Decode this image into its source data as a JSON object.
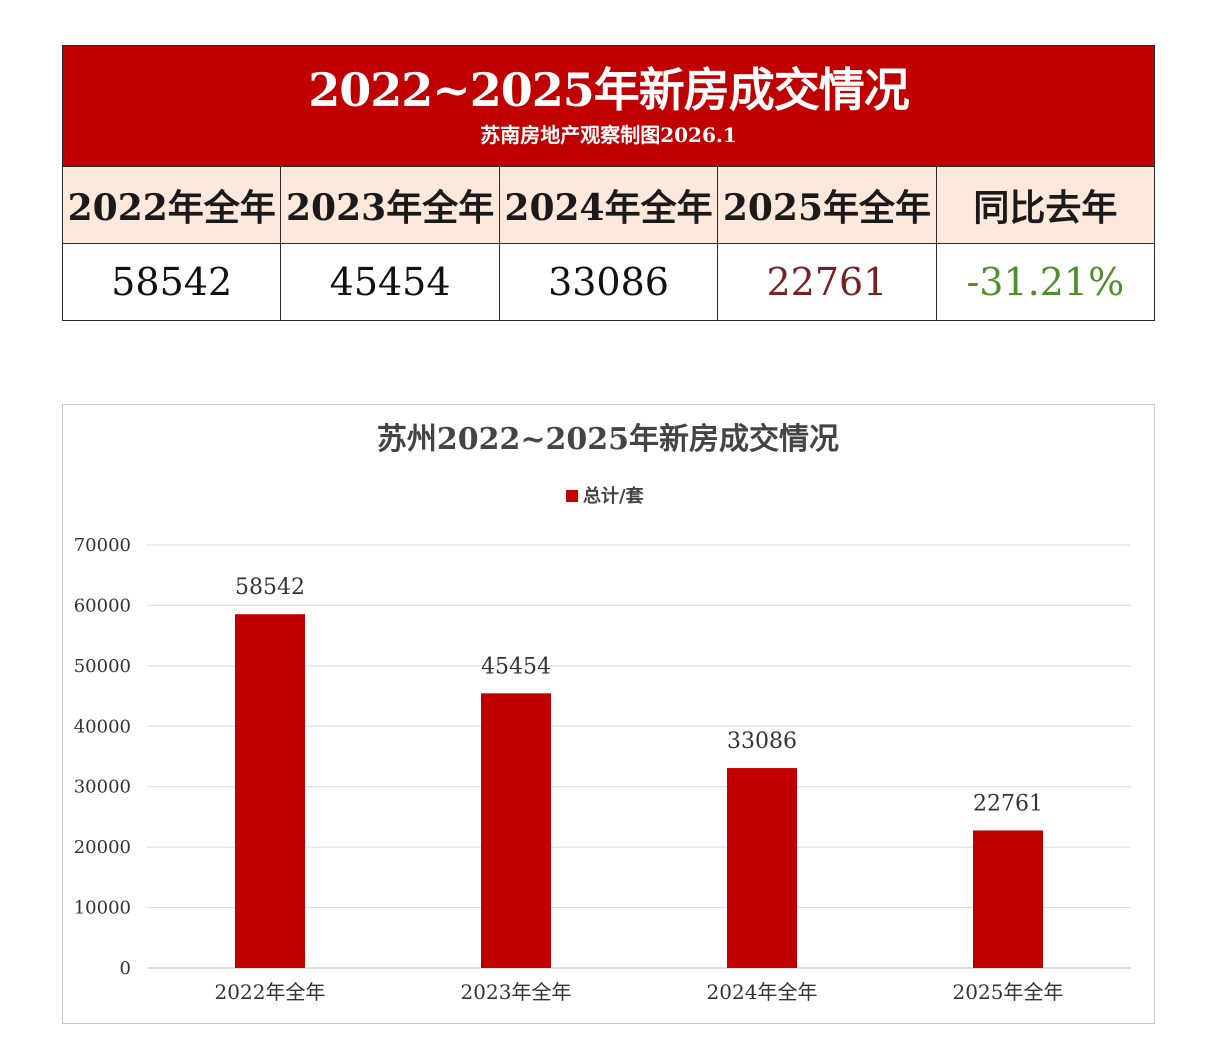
{
  "summary": {
    "title": "2022~2025年新房成交情况",
    "subtitle": "苏南房地产观察制图2026.1",
    "headers": [
      "2022年全年",
      "2023年全年",
      "2024年全年",
      "2025年全年",
      "同比去年"
    ],
    "values": [
      "58542",
      "45454",
      "33086",
      "22761",
      "-31.21%"
    ],
    "colors": {
      "header_bg": "#c00000",
      "column_header_bg": "#fde8dc",
      "current_value": "#7a2020",
      "change_value": "#4e8f2e"
    }
  },
  "chart_data": {
    "type": "bar",
    "title": "苏州2022~2025年新房成交情况",
    "categories": [
      "2022年全年",
      "2023年全年",
      "2024年全年",
      "2025年全年"
    ],
    "series": [
      {
        "name": "总计/套",
        "values": [
          58542,
          45454,
          33086,
          22761
        ],
        "color": "#c00000"
      }
    ],
    "data_labels": [
      "58542",
      "45454",
      "33086",
      "22761"
    ],
    "ylim": [
      0,
      70000
    ],
    "yticks": [
      0,
      10000,
      20000,
      30000,
      40000,
      50000,
      60000,
      70000
    ],
    "ytick_labels": [
      "0",
      "10000",
      "20000",
      "30000",
      "40000",
      "50000",
      "60000",
      "70000"
    ],
    "xlabel": "",
    "ylabel": "",
    "grid": true,
    "legend_position": "top-center"
  }
}
